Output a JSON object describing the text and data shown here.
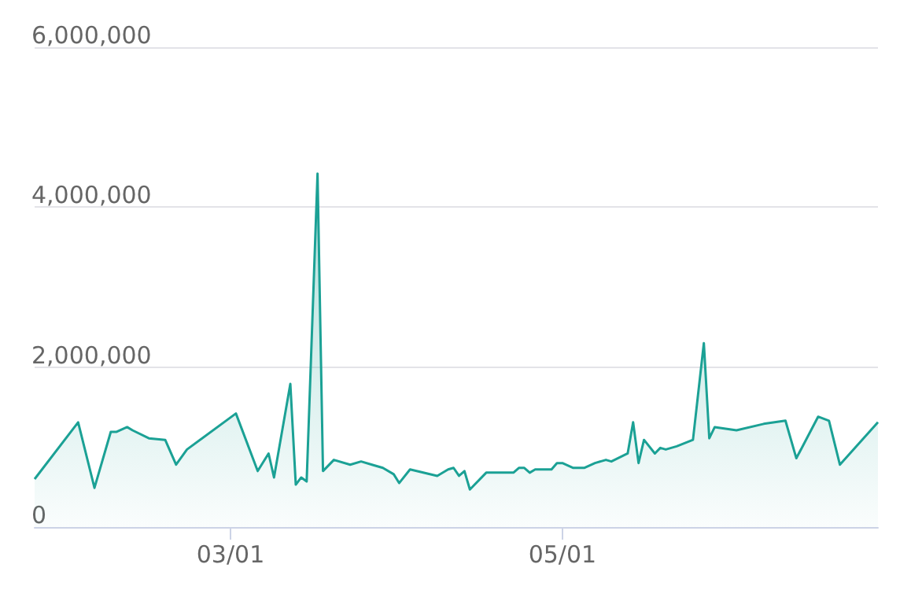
{
  "chart_data": {
    "type": "area",
    "color": "#1ba195",
    "marker": "none",
    "grid": "y",
    "x": [
      "--01-24",
      "--02-01",
      "--02-04",
      "--02-07",
      "--02-08",
      "--02-10",
      "--02-11",
      "--02-14",
      "--02-17",
      "--02-19",
      "--02-21",
      "--03-02",
      "--03-06",
      "--03-08",
      "--03-09",
      "--03-12",
      "--03-13",
      "--03-14",
      "--03-15",
      "--03-17",
      "--03-18",
      "--03-20",
      "--03-23",
      "--03-25",
      "--03-27",
      "--03-29",
      "--03-31",
      "--04-01",
      "--04-03",
      "--04-08",
      "--04-10",
      "--04-11",
      "--04-12",
      "--04-13",
      "--04-14",
      "--04-17",
      "--04-22",
      "--04-23",
      "--04-24",
      "--04-25",
      "--04-26",
      "--04-29",
      "--04-30",
      "--05-01",
      "--05-03",
      "--05-05",
      "--05-07",
      "--05-09",
      "--05-10",
      "--05-13",
      "--05-14",
      "--05-15",
      "--05-16",
      "--05-18",
      "--05-19",
      "--05-20",
      "--05-22",
      "--05-25",
      "--05-27",
      "--05-28",
      "--05-29",
      "--06-02",
      "--06-07",
      "--06-11",
      "--06-13",
      "--06-17",
      "--06-19",
      "--06-21",
      "--06-28"
    ],
    "values": [
      600000,
      1310000,
      490000,
      1190000,
      1190000,
      1250000,
      1210000,
      1110000,
      1090000,
      780000,
      970000,
      1420000,
      700000,
      920000,
      620000,
      1790000,
      530000,
      620000,
      570000,
      4420000,
      700000,
      840000,
      780000,
      820000,
      780000,
      740000,
      660000,
      550000,
      720000,
      640000,
      720000,
      740000,
      640000,
      700000,
      470000,
      680000,
      680000,
      740000,
      740000,
      680000,
      720000,
      720000,
      800000,
      800000,
      740000,
      740000,
      800000,
      840000,
      820000,
      920000,
      1310000,
      800000,
      1090000,
      920000,
      990000,
      970000,
      1010000,
      1090000,
      2300000,
      1110000,
      1250000,
      1210000,
      1290000,
      1330000,
      860000,
      1380000,
      1330000,
      780000,
      1310000
    ],
    "xlim": [
      "--01-24",
      "--06-28"
    ],
    "xticks": [
      {
        "value": "--03-01",
        "label": "03/01"
      },
      {
        "value": "--05-01",
        "label": "05/01"
      }
    ],
    "ylim": [
      0,
      6000000
    ],
    "yticks": [
      0,
      {
        "value": 2000000,
        "label": "2,000,000"
      },
      {
        "value": 4000000,
        "label": "4,000,000"
      },
      {
        "value": 6000000,
        "label": "6,000,000"
      }
    ]
  }
}
